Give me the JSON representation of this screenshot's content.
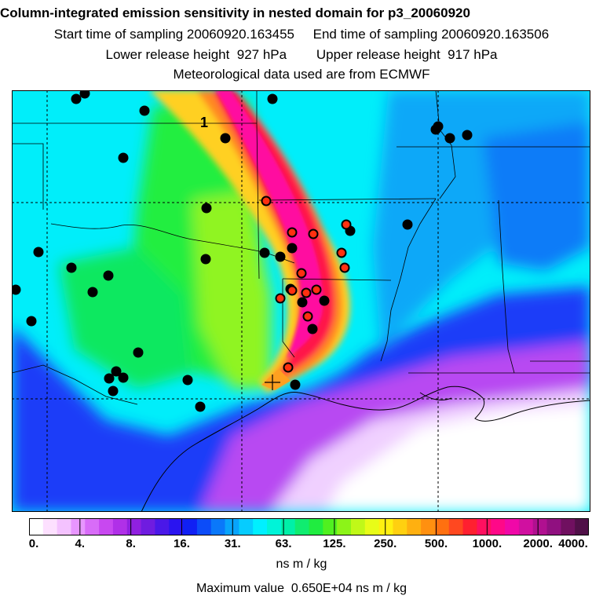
{
  "header": {
    "title": "Column-integrated emission sensitivity in nested domain for p3_20060920",
    "sampling": "Start time of sampling 20060920.163455     End time of sampling 20060920.163506",
    "release": "Lower release height  927 hPa        Upper release height  917 hPa",
    "met": "Meteorological data used are from ECMWF"
  },
  "map": {
    "contour_label": "1",
    "colors": {
      "sea_far": "#ffffff",
      "violet": "#b040f0",
      "blue": "#1010f0",
      "cyan": "#00f0ff",
      "green": "#20f030",
      "yellow_green": "#d0ff20",
      "orange": "#ffa020",
      "red": "#ff1040",
      "magenta": "#ff10a0"
    },
    "receptor_markers": "black dots",
    "flagged_markers": "red-filled circles"
  },
  "legend": {
    "tick_labels": [
      "0.",
      "4.",
      "8.",
      "16.",
      "31.",
      "63.",
      "125.",
      "250.",
      "500.",
      "1000.",
      "2000.",
      "4000."
    ],
    "swatches": [
      "#ffffff",
      "#fde0ff",
      "#f4c2ff",
      "#e896ff",
      "#d86cf8",
      "#c848f0",
      "#b030e8",
      "#9020e0",
      "#6f1ce0",
      "#4a18e8",
      "#2a14f0",
      "#1020f4",
      "#0c4cf8",
      "#0a78fa",
      "#08a4fc",
      "#06ccfe",
      "#00f0ff",
      "#00f4d8",
      "#00f0a8",
      "#10ec70",
      "#20ec40",
      "#50f020",
      "#8cf418",
      "#c0f818",
      "#e8fc18",
      "#fff010",
      "#ffd010",
      "#ffb010",
      "#ff9010",
      "#ff7010",
      "#ff4820",
      "#ff2030",
      "#ff1060",
      "#ff0888",
      "#f008a8",
      "#d010a0",
      "#b01090",
      "#901080",
      "#701060",
      "#501048"
    ],
    "units": "ns m / kg",
    "max_value": "Maximum value  0.650E+04 ns m / kg"
  }
}
